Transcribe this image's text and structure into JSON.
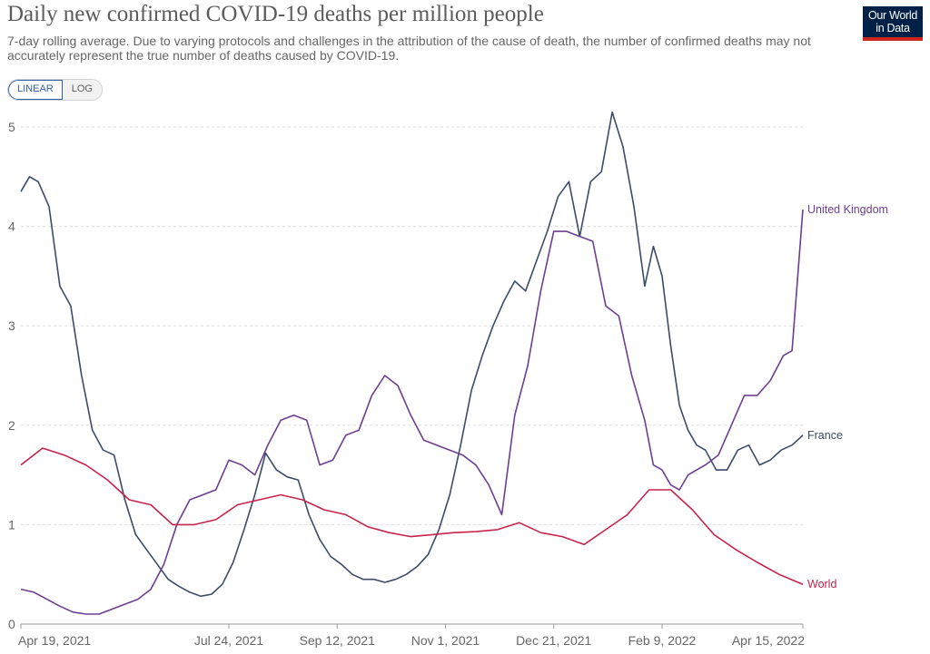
{
  "header": {
    "title": "Daily new confirmed COVID-19 deaths per million people",
    "subtitle": "7-day rolling average. Due to varying protocols and challenges in the attribution of the cause of death, the number of confirmed deaths may not accurately represent the true number of deaths caused by COVID-19.",
    "logo": "Our World in Data"
  },
  "controls": {
    "linear_label": "LINEAR",
    "log_label": "LOG",
    "selected": "LINEAR"
  },
  "chart_data": {
    "type": "line",
    "title": "Daily new confirmed COVID-19 deaths per million people",
    "subtitle": "7-day rolling average. Due to varying protocols and challenges in the attribution of the cause of death, the number of confirmed deaths may not accurately represent the true number of deaths caused by COVID-19.",
    "x_ticks": [
      "Apr 19, 2021",
      "Jul 24, 2021",
      "Sep 12, 2021",
      "Nov 1, 2021",
      "Dec 21, 2021",
      "Feb 9, 2022",
      "Apr 15, 2022"
    ],
    "x_range": [
      "2021-04-19",
      "2022-04-15"
    ],
    "y_ticks": [
      0,
      1,
      2,
      3,
      4,
      5
    ],
    "ylim": [
      0,
      5.1
    ],
    "grid": "horizontal dashed",
    "legend": "labels at line ends",
    "series": [
      {
        "name": "France",
        "color": "#3c4b67",
        "x": [
          "2021-04-19",
          "2021-04-23",
          "2021-04-27",
          "2021-05-02",
          "2021-05-07",
          "2021-05-12",
          "2021-05-17",
          "2021-05-22",
          "2021-05-27",
          "2021-06-01",
          "2021-06-06",
          "2021-06-11",
          "2021-06-16",
          "2021-06-21",
          "2021-06-26",
          "2021-07-01",
          "2021-07-06",
          "2021-07-11",
          "2021-07-16",
          "2021-07-21",
          "2021-07-26",
          "2021-07-31",
          "2021-08-05",
          "2021-08-10",
          "2021-08-15",
          "2021-08-20",
          "2021-08-25",
          "2021-08-30",
          "2021-09-04",
          "2021-09-09",
          "2021-09-14",
          "2021-09-19",
          "2021-09-24",
          "2021-09-29",
          "2021-10-04",
          "2021-10-09",
          "2021-10-14",
          "2021-10-19",
          "2021-10-24",
          "2021-10-29",
          "2021-11-03",
          "2021-11-08",
          "2021-11-13",
          "2021-11-18",
          "2021-11-23",
          "2021-11-28",
          "2021-12-03",
          "2021-12-08",
          "2021-12-13",
          "2021-12-18",
          "2021-12-23",
          "2021-12-28",
          "2022-01-02",
          "2022-01-07",
          "2022-01-12",
          "2022-01-17",
          "2022-01-22",
          "2022-01-27",
          "2022-02-01",
          "2022-02-05",
          "2022-02-09",
          "2022-02-13",
          "2022-02-17",
          "2022-02-21",
          "2022-02-25",
          "2022-03-01",
          "2022-03-06",
          "2022-03-11",
          "2022-03-16",
          "2022-03-21",
          "2022-03-26",
          "2022-03-31",
          "2022-04-05",
          "2022-04-10",
          "2022-04-15"
        ],
        "values": [
          4.35,
          4.5,
          4.45,
          4.2,
          3.4,
          3.2,
          2.5,
          1.95,
          1.75,
          1.7,
          1.25,
          0.9,
          0.75,
          0.6,
          0.45,
          0.38,
          0.32,
          0.28,
          0.3,
          0.4,
          0.62,
          0.95,
          1.3,
          1.72,
          1.55,
          1.48,
          1.45,
          1.1,
          0.85,
          0.68,
          0.6,
          0.5,
          0.45,
          0.45,
          0.42,
          0.45,
          0.5,
          0.58,
          0.7,
          0.95,
          1.3,
          1.8,
          2.35,
          2.7,
          3.0,
          3.25,
          3.45,
          3.35,
          3.65,
          3.95,
          4.3,
          4.45,
          3.9,
          4.45,
          4.55,
          5.15,
          4.8,
          4.2,
          3.4,
          3.8,
          3.5,
          2.8,
          2.2,
          1.95,
          1.8,
          1.75,
          1.55,
          1.55,
          1.75,
          1.8,
          1.6,
          1.65,
          1.75,
          1.8,
          1.9
        ]
      },
      {
        "name": "United Kingdom",
        "color": "#6d3e91",
        "x": [
          "2021-04-19",
          "2021-04-25",
          "2021-05-01",
          "2021-05-07",
          "2021-05-13",
          "2021-05-19",
          "2021-05-25",
          "2021-05-31",
          "2021-06-06",
          "2021-06-12",
          "2021-06-18",
          "2021-06-24",
          "2021-06-30",
          "2021-07-06",
          "2021-07-12",
          "2021-07-18",
          "2021-07-24",
          "2021-07-30",
          "2021-08-05",
          "2021-08-11",
          "2021-08-17",
          "2021-08-23",
          "2021-08-29",
          "2021-09-04",
          "2021-09-10",
          "2021-09-16",
          "2021-09-22",
          "2021-09-28",
          "2021-10-04",
          "2021-10-10",
          "2021-10-16",
          "2021-10-22",
          "2021-10-28",
          "2021-11-03",
          "2021-11-09",
          "2021-11-15",
          "2021-11-21",
          "2021-11-27",
          "2021-12-03",
          "2021-12-09",
          "2021-12-15",
          "2021-12-21",
          "2021-12-27",
          "2022-01-02",
          "2022-01-08",
          "2022-01-14",
          "2022-01-20",
          "2022-01-26",
          "2022-02-01",
          "2022-02-05",
          "2022-02-09",
          "2022-02-13",
          "2022-02-17",
          "2022-02-21",
          "2022-02-25",
          "2022-03-01",
          "2022-03-07",
          "2022-03-13",
          "2022-03-19",
          "2022-03-25",
          "2022-03-31",
          "2022-04-06",
          "2022-04-10",
          "2022-04-15"
        ],
        "values": [
          0.35,
          0.32,
          0.25,
          0.18,
          0.12,
          0.1,
          0.1,
          0.15,
          0.2,
          0.25,
          0.35,
          0.6,
          1.0,
          1.25,
          1.3,
          1.35,
          1.65,
          1.6,
          1.5,
          1.8,
          2.05,
          2.1,
          2.05,
          1.6,
          1.65,
          1.9,
          1.95,
          2.3,
          2.5,
          2.4,
          2.1,
          1.85,
          1.8,
          1.75,
          1.7,
          1.6,
          1.4,
          1.1,
          2.1,
          2.6,
          3.35,
          3.95,
          3.95,
          3.9,
          3.85,
          3.2,
          3.1,
          2.5,
          2.05,
          1.6,
          1.55,
          1.4,
          1.35,
          1.5,
          1.55,
          1.6,
          1.7,
          2.0,
          2.3,
          2.3,
          2.45,
          2.7,
          2.75,
          4.17
        ]
      },
      {
        "name": "World",
        "color": "#c8234c",
        "x": [
          "2021-04-19",
          "2021-04-29",
          "2021-05-09",
          "2021-05-19",
          "2021-05-29",
          "2021-06-08",
          "2021-06-18",
          "2021-06-28",
          "2021-07-08",
          "2021-07-18",
          "2021-07-28",
          "2021-08-07",
          "2021-08-17",
          "2021-08-27",
          "2021-09-06",
          "2021-09-16",
          "2021-09-26",
          "2021-10-06",
          "2021-10-16",
          "2021-10-26",
          "2021-11-05",
          "2021-11-15",
          "2021-11-25",
          "2021-12-05",
          "2021-12-15",
          "2021-12-25",
          "2022-01-04",
          "2022-01-14",
          "2022-01-24",
          "2022-02-03",
          "2022-02-13",
          "2022-02-23",
          "2022-03-05",
          "2022-03-15",
          "2022-03-25",
          "2022-04-04",
          "2022-04-15"
        ],
        "values": [
          1.6,
          1.77,
          1.7,
          1.6,
          1.45,
          1.25,
          1.2,
          1.0,
          1.0,
          1.05,
          1.2,
          1.25,
          1.3,
          1.25,
          1.15,
          1.1,
          0.98,
          0.92,
          0.88,
          0.9,
          0.92,
          0.93,
          0.95,
          1.02,
          0.92,
          0.88,
          0.8,
          0.95,
          1.1,
          1.35,
          1.35,
          1.15,
          0.9,
          0.75,
          0.62,
          0.5,
          0.4
        ]
      }
    ]
  }
}
